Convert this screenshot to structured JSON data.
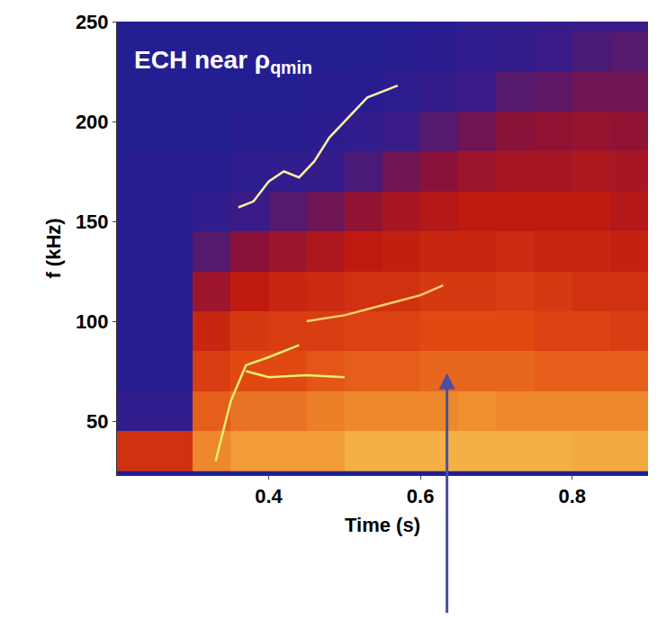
{
  "chart_data": {
    "type": "heatmap",
    "x_label": "Time (s)",
    "y_label": "f (kHz)",
    "xlim": [
      0.2,
      0.9
    ],
    "xticks": [
      0.4,
      0.6,
      0.8
    ],
    "ylim": [
      23,
      250
    ],
    "yticks": [
      50,
      100,
      150,
      200,
      250
    ],
    "grid": false,
    "x": [
      0.225,
      0.275,
      0.325,
      0.375,
      0.425,
      0.475,
      0.525,
      0.575,
      0.625,
      0.675,
      0.725,
      0.775,
      0.825,
      0.875
    ],
    "y": [
      35,
      55,
      75,
      95,
      115,
      135,
      155,
      175,
      195,
      215,
      235,
      255
    ],
    "z_range": [
      0,
      1
    ],
    "z": [
      [
        0.55,
        0.55,
        0.8,
        0.85,
        0.85,
        0.85,
        0.9,
        0.9,
        0.9,
        0.9,
        0.9,
        0.9,
        0.88,
        0.88
      ],
      [
        0.1,
        0.1,
        0.7,
        0.75,
        0.75,
        0.78,
        0.8,
        0.8,
        0.8,
        0.82,
        0.8,
        0.8,
        0.8,
        0.8
      ],
      [
        0.05,
        0.05,
        0.6,
        0.65,
        0.65,
        0.68,
        0.7,
        0.7,
        0.72,
        0.72,
        0.72,
        0.7,
        0.7,
        0.7
      ],
      [
        0.05,
        0.05,
        0.5,
        0.58,
        0.6,
        0.6,
        0.62,
        0.62,
        0.65,
        0.65,
        0.65,
        0.62,
        0.62,
        0.6
      ],
      [
        0.05,
        0.05,
        0.35,
        0.45,
        0.5,
        0.52,
        0.55,
        0.55,
        0.58,
        0.58,
        0.6,
        0.58,
        0.55,
        0.55
      ],
      [
        0.05,
        0.05,
        0.2,
        0.3,
        0.35,
        0.4,
        0.45,
        0.47,
        0.5,
        0.5,
        0.52,
        0.5,
        0.5,
        0.48
      ],
      [
        0.05,
        0.05,
        0.1,
        0.15,
        0.2,
        0.25,
        0.32,
        0.38,
        0.42,
        0.45,
        0.45,
        0.45,
        0.45,
        0.42
      ],
      [
        0.05,
        0.05,
        0.05,
        0.08,
        0.1,
        0.12,
        0.18,
        0.25,
        0.3,
        0.35,
        0.38,
        0.38,
        0.4,
        0.38
      ],
      [
        0.03,
        0.03,
        0.03,
        0.05,
        0.05,
        0.07,
        0.1,
        0.15,
        0.2,
        0.25,
        0.3,
        0.32,
        0.33,
        0.32
      ],
      [
        0.03,
        0.03,
        0.03,
        0.03,
        0.03,
        0.05,
        0.05,
        0.08,
        0.12,
        0.15,
        0.2,
        0.22,
        0.25,
        0.25
      ],
      [
        0.03,
        0.03,
        0.03,
        0.03,
        0.03,
        0.03,
        0.04,
        0.05,
        0.07,
        0.1,
        0.12,
        0.15,
        0.18,
        0.2
      ],
      [
        0.03,
        0.03,
        0.03,
        0.03,
        0.03,
        0.03,
        0.03,
        0.04,
        0.05,
        0.08,
        0.1,
        0.12,
        0.15,
        0.15
      ]
    ],
    "series": [
      {
        "type": "line",
        "color": "#fff0a0",
        "x": [
          0.36,
          0.38,
          0.4,
          0.42,
          0.44,
          0.46,
          0.48,
          0.5,
          0.53,
          0.57
        ],
        "values": [
          157,
          160,
          170,
          175,
          172,
          180,
          192,
          200,
          212,
          218
        ]
      },
      {
        "type": "line",
        "color": "#e8f070",
        "x": [
          0.33,
          0.34,
          0.35,
          0.37,
          0.4,
          0.44
        ],
        "values": [
          30,
          45,
          60,
          78,
          82,
          88
        ]
      },
      {
        "type": "line",
        "color": "#e8f070",
        "x": [
          0.37,
          0.4,
          0.45,
          0.5
        ],
        "values": [
          75,
          72,
          73,
          72
        ]
      },
      {
        "type": "line",
        "color": "#ffd070",
        "x": [
          0.45,
          0.5,
          0.55,
          0.6,
          0.63
        ],
        "values": [
          100,
          103,
          108,
          113,
          118
        ]
      }
    ],
    "annotations": [
      {
        "text": "ECH near ρ",
        "subscript": "qmin",
        "x": 0.22,
        "y": 230,
        "color": "#ffffff"
      },
      {
        "arrow": true,
        "x": 0.635,
        "y": 74,
        "color": "#4a4fa0"
      }
    ]
  }
}
